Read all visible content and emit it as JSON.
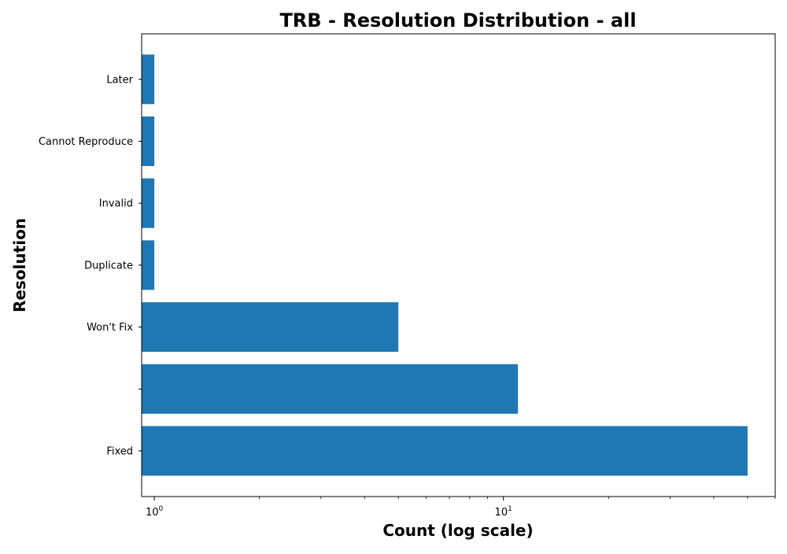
{
  "colors": {
    "bar": "#1f77b4",
    "axis": "#000000",
    "background": "#ffffff"
  },
  "chart_data": {
    "type": "bar",
    "orientation": "horizontal",
    "title": "TRB - Resolution Distribution - all",
    "xlabel": "Count (log scale)",
    "ylabel": "Resolution",
    "xscale": "log",
    "xlim": [
      0.92,
      60
    ],
    "categories": [
      "Fixed",
      "",
      "Won't Fix",
      "Duplicate",
      "Invalid",
      "Cannot Reproduce",
      "Later"
    ],
    "values": [
      50,
      11,
      5,
      1,
      1,
      1,
      1
    ],
    "major_ticks": [
      {
        "value": 1,
        "base": "10",
        "exp": "0"
      },
      {
        "value": 10,
        "base": "10",
        "exp": "1"
      }
    ],
    "grid": false,
    "legend": "none"
  }
}
